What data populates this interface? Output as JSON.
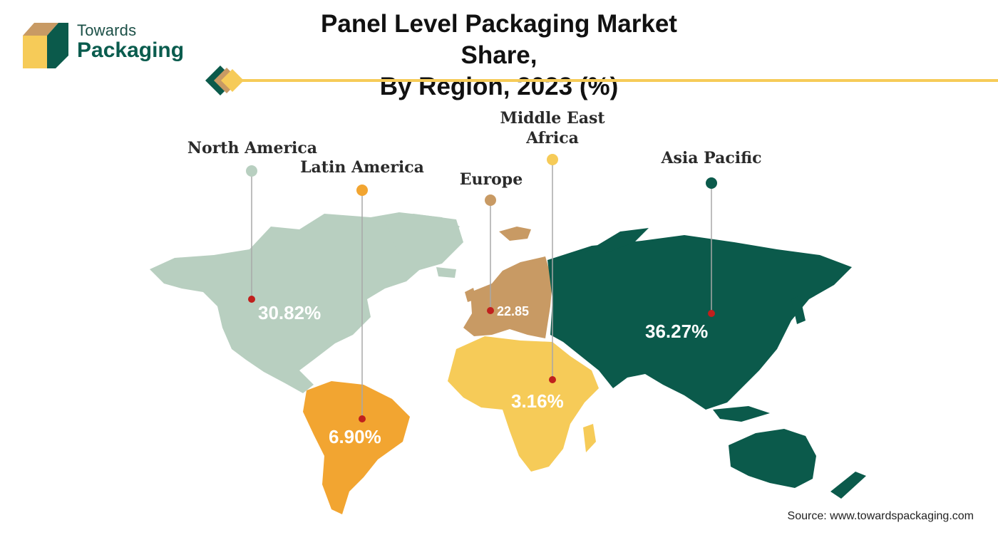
{
  "brand": {
    "line1": "Towards",
    "line2": "Packaging"
  },
  "title": {
    "line1": "Panel Level Packaging Market Share,",
    "line2": "By Region, 2023 (%)"
  },
  "colors": {
    "north_america": "#b8cfc0",
    "latin_america": "#f2a531",
    "europe": "#c89a64",
    "middle_east_africa": "#f6cb58",
    "asia_pacific": "#0b5a4b",
    "accent_line": "#f6cb58",
    "marker": "#c0201d"
  },
  "regions": [
    {
      "id": "north_america",
      "name": "North America",
      "value": "30.82%"
    },
    {
      "id": "latin_america",
      "name": "Latin America",
      "value": "6.90%"
    },
    {
      "id": "europe",
      "name": "Europe",
      "value": "22.85"
    },
    {
      "id": "middle_east_africa",
      "name_line1": "Middle East",
      "name_line2": "Africa",
      "value": "3.16%"
    },
    {
      "id": "asia_pacific",
      "name": "Asia Pacific",
      "value": "36.27%"
    }
  ],
  "source": "Source: www.towardspackaging.com"
}
